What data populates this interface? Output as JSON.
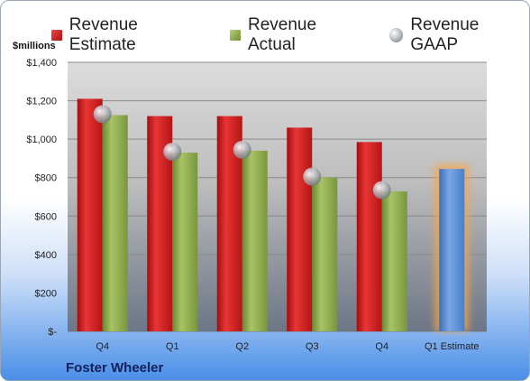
{
  "legend": {
    "estimate": "Revenue Estimate",
    "actual": "Revenue Actual",
    "gaap": "Revenue GAAP"
  },
  "company": "Foster Wheeler",
  "chart_data": {
    "type": "bar",
    "ylabel": "$millions",
    "ylim": [
      0,
      1400
    ],
    "yticks": [
      "$-",
      "$200",
      "$400",
      "$600",
      "$800",
      "$1,000",
      "$1,200",
      "$1,400"
    ],
    "categories": [
      "Q4",
      "Q1",
      "Q2",
      "Q3",
      "Q4",
      "Q1 Estimate"
    ],
    "grid": true,
    "legend_position": "top",
    "colors": {
      "estimate": "#c8191a",
      "actual": "#8eab4a",
      "gaap": "#9aa0a8",
      "next_estimate": "#5b8fd6",
      "highlight": "#f7a64a"
    },
    "series": [
      {
        "name": "Revenue Estimate",
        "type": "bar",
        "values": [
          1210,
          1120,
          1120,
          1060,
          985,
          null
        ]
      },
      {
        "name": "Revenue Actual",
        "type": "bar",
        "values": [
          1125,
          930,
          940,
          800,
          728,
          null
        ]
      },
      {
        "name": "Revenue GAAP",
        "type": "marker",
        "values": [
          1130,
          935,
          945,
          805,
          735,
          null
        ]
      },
      {
        "name": "Q1 Estimate",
        "type": "bar",
        "values": [
          null,
          null,
          null,
          null,
          null,
          845
        ]
      }
    ]
  }
}
